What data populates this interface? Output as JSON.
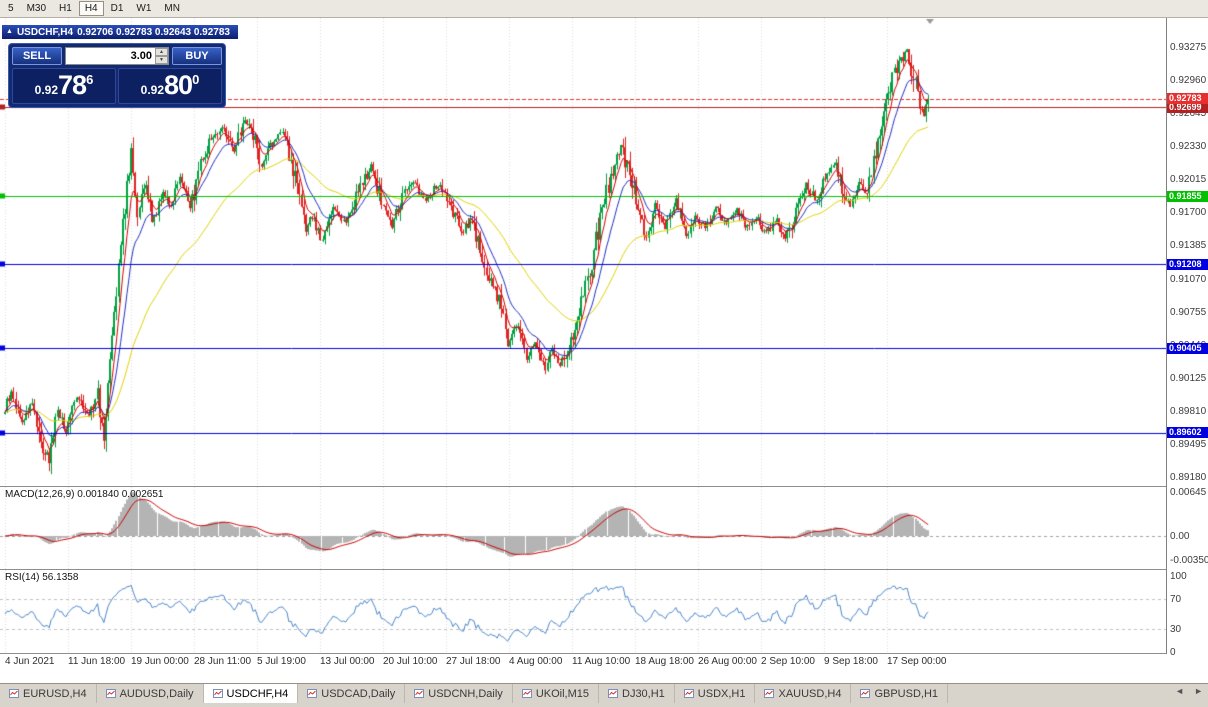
{
  "toolbar": {
    "periods": [
      "5",
      "M30",
      "H1",
      "H4",
      "D1",
      "W1",
      "MN"
    ],
    "active_period": "H4"
  },
  "icons": {
    "title_marker": "▲",
    "spinner_up": "▲",
    "spinner_down": "▼",
    "tab_scroll_left": "◄",
    "tab_scroll_right": "►"
  },
  "chart_window": {
    "title_symbol": "USDCHF,H4",
    "title_ohlc": "0.92706 0.92783 0.92643 0.92783"
  },
  "trade_panel": {
    "sell_label": "SELL",
    "buy_label": "BUY",
    "volume": "3.00",
    "sell_price_prefix": "0.92",
    "sell_price_big": "78",
    "sell_price_sup": "6",
    "buy_price_prefix": "0.92",
    "buy_price_big": "80",
    "buy_price_sup": "0"
  },
  "chart_data": {
    "type": "candlestick",
    "symbol": "USDCHF",
    "timeframe": "H4",
    "current": {
      "open": 0.92706,
      "high": 0.92783,
      "low": 0.92643,
      "close": 0.92783,
      "bid": 0.92786,
      "ask": 0.928
    },
    "candle_up_color": "#00a040",
    "candle_down_color": "#e02222",
    "y_ticks": [
      "0.93275",
      "0.92960",
      "0.92645",
      "0.92330",
      "0.92015",
      "0.91700",
      "0.91385",
      "0.91070",
      "0.90755",
      "0.90440",
      "0.90125",
      "0.89810",
      "0.89495",
      "0.89180"
    ],
    "x_labels": [
      "4 Jun 2021",
      "11 Jun 18:00",
      "19 Jun 00:00",
      "28 Jun 11:00",
      "5 Jul 19:00",
      "13 Jul 00:00",
      "20 Jul 10:00",
      "27 Jul 18:00",
      "4 Aug 00:00",
      "11 Aug 10:00",
      "18 Aug 18:00",
      "26 Aug 00:00",
      "2 Sep 10:00",
      "9 Sep 18:00",
      "17 Sep 00:00"
    ],
    "h_lines": [
      {
        "price": 0.92699,
        "label": "0.92699",
        "color": "#b22222"
      },
      {
        "price": 0.91855,
        "label": "0.91855",
        "color": "#00c000"
      },
      {
        "price": 0.91208,
        "label": "0.91208",
        "color": "#0000e0"
      },
      {
        "price": 0.90405,
        "label": "0.90405",
        "color": "#0000e0"
      },
      {
        "price": 0.89602,
        "label": "0.89602",
        "color": "#0000e0"
      }
    ],
    "bid_line": {
      "price": 0.92783,
      "label": "0.92783",
      "color": "#e63030"
    },
    "ma_lines": [
      {
        "name": "fast-ma",
        "color": "#d40000",
        "period": 6
      },
      {
        "name": "mid-ma",
        "color": "#2030c0",
        "period": 14
      },
      {
        "name": "slow-ma",
        "color": "#e0d000",
        "period": 50
      }
    ],
    "candle_count": 440,
    "price_keypoints": [
      [
        0,
        0.8982
      ],
      [
        3,
        0.8998
      ],
      [
        8,
        0.897
      ],
      [
        13,
        0.899
      ],
      [
        18,
        0.8944
      ],
      [
        21,
        0.8936
      ],
      [
        25,
        0.8983
      ],
      [
        29,
        0.8958
      ],
      [
        33,
        0.8994
      ],
      [
        40,
        0.8978
      ],
      [
        44,
        0.8998
      ],
      [
        47,
        0.8956
      ],
      [
        50,
        0.904
      ],
      [
        54,
        0.912
      ],
      [
        58,
        0.9196
      ],
      [
        60,
        0.9228
      ],
      [
        63,
        0.917
      ],
      [
        67,
        0.9196
      ],
      [
        70,
        0.9162
      ],
      [
        75,
        0.919
      ],
      [
        79,
        0.9176
      ],
      [
        83,
        0.9206
      ],
      [
        88,
        0.9172
      ],
      [
        93,
        0.9218
      ],
      [
        98,
        0.924
      ],
      [
        104,
        0.9252
      ],
      [
        109,
        0.9226
      ],
      [
        114,
        0.926
      ],
      [
        119,
        0.9238
      ],
      [
        122,
        0.9212
      ],
      [
        126,
        0.9236
      ],
      [
        133,
        0.9246
      ],
      [
        138,
        0.92
      ],
      [
        143,
        0.9152
      ],
      [
        146,
        0.9166
      ],
      [
        151,
        0.9142
      ],
      [
        156,
        0.9176
      ],
      [
        162,
        0.916
      ],
      [
        168,
        0.919
      ],
      [
        174,
        0.9214
      ],
      [
        179,
        0.9182
      ],
      [
        184,
        0.9156
      ],
      [
        189,
        0.9186
      ],
      [
        194,
        0.92
      ],
      [
        200,
        0.9182
      ],
      [
        206,
        0.9196
      ],
      [
        212,
        0.9172
      ],
      [
        218,
        0.9152
      ],
      [
        222,
        0.9166
      ],
      [
        226,
        0.9132
      ],
      [
        231,
        0.9102
      ],
      [
        236,
        0.9082
      ],
      [
        239,
        0.9048
      ],
      [
        244,
        0.9062
      ],
      [
        248,
        0.9032
      ],
      [
        252,
        0.9046
      ],
      [
        257,
        0.902
      ],
      [
        260,
        0.904
      ],
      [
        264,
        0.9024
      ],
      [
        269,
        0.9048
      ],
      [
        274,
        0.9082
      ],
      [
        279,
        0.9122
      ],
      [
        283,
        0.9162
      ],
      [
        288,
        0.9204
      ],
      [
        293,
        0.9234
      ],
      [
        297,
        0.9206
      ],
      [
        301,
        0.917
      ],
      [
        305,
        0.9144
      ],
      [
        309,
        0.9176
      ],
      [
        314,
        0.9156
      ],
      [
        319,
        0.9182
      ],
      [
        324,
        0.9146
      ],
      [
        328,
        0.9166
      ],
      [
        333,
        0.9156
      ],
      [
        338,
        0.9176
      ],
      [
        343,
        0.916
      ],
      [
        348,
        0.9172
      ],
      [
        352,
        0.9156
      ],
      [
        357,
        0.9166
      ],
      [
        362,
        0.915
      ],
      [
        367,
        0.9162
      ],
      [
        371,
        0.9144
      ],
      [
        376,
        0.917
      ],
      [
        381,
        0.9196
      ],
      [
        386,
        0.918
      ],
      [
        390,
        0.9202
      ],
      [
        395,
        0.9216
      ],
      [
        398,
        0.919
      ],
      [
        402,
        0.9176
      ],
      [
        406,
        0.92
      ],
      [
        410,
        0.9186
      ],
      [
        413,
        0.922
      ],
      [
        417,
        0.9258
      ],
      [
        421,
        0.9292
      ],
      [
        425,
        0.9312
      ],
      [
        429,
        0.9326
      ],
      [
        432,
        0.93
      ],
      [
        435,
        0.927
      ],
      [
        437,
        0.9262
      ],
      [
        439,
        0.92783
      ]
    ],
    "indicators": {
      "macd": {
        "label": "MACD(12,26,9) 0.001840 0.002651",
        "axis_labels": [
          "0.00645",
          "0.00",
          "-0.00350"
        ],
        "histogram_color": "#b4b4b4",
        "signal_color": "#cc0000"
      },
      "rsi": {
        "label": "RSI(14) 56.1358",
        "axis_labels": [
          "100",
          "70",
          "30",
          "0"
        ],
        "levels": [
          70,
          30
        ],
        "line_color": "#4a86c8"
      }
    }
  },
  "tabs": {
    "items": [
      "EURUSD,H4",
      "AUDUSD,Daily",
      "USDCHF,H4",
      "USDCAD,Daily",
      "USDCNH,Daily",
      "UKOil,M15",
      "DJ30,H1",
      "USDX,H1",
      "XAUUSD,H4",
      "GBPUSD,H1"
    ],
    "active": "USDCHF,H4"
  }
}
